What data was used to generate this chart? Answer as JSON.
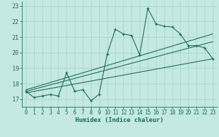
{
  "xlabel": "Humidex (Indice chaleur)",
  "background_color": "#c4e8e4",
  "grid_color": "#a8d4d0",
  "line_color": "#1a6b5a",
  "xlim": [
    -0.5,
    23.5
  ],
  "ylim": [
    16.5,
    23.3
  ],
  "yticks": [
    17,
    18,
    19,
    20,
    21,
    22,
    23
  ],
  "xticks": [
    0,
    1,
    2,
    3,
    4,
    5,
    6,
    7,
    8,
    9,
    10,
    11,
    12,
    13,
    14,
    15,
    16,
    17,
    18,
    19,
    20,
    21,
    22,
    23
  ],
  "main_line_x": [
    0,
    1,
    2,
    3,
    4,
    5,
    6,
    7,
    8,
    9,
    10,
    11,
    12,
    13,
    14,
    15,
    16,
    17,
    18,
    19,
    20,
    21,
    22,
    23
  ],
  "main_line_y": [
    17.5,
    17.1,
    17.2,
    17.3,
    17.2,
    18.7,
    17.5,
    17.6,
    16.9,
    17.3,
    19.9,
    21.5,
    21.2,
    21.1,
    19.85,
    22.85,
    21.85,
    21.7,
    21.65,
    21.2,
    20.45,
    20.45,
    20.3,
    19.6
  ],
  "reg_line1_x": [
    0,
    23
  ],
  "reg_line1_y": [
    17.4,
    19.6
  ],
  "reg_line2_x": [
    0,
    23
  ],
  "reg_line2_y": [
    17.5,
    20.7
  ],
  "reg_line3_x": [
    0,
    23
  ],
  "reg_line3_y": [
    17.6,
    21.2
  ],
  "xlabel_fontsize": 6.5,
  "tick_fontsize": 5.5
}
